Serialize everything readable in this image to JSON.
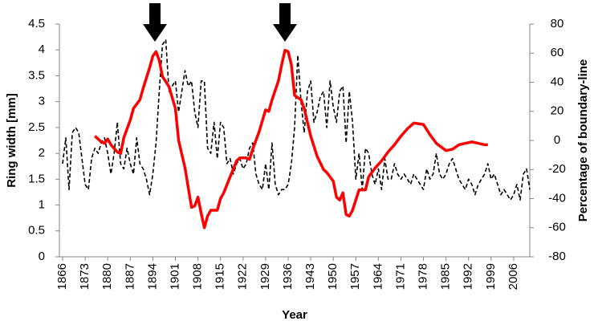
{
  "chart_data": {
    "type": "line",
    "xlabel": "Year",
    "ylabel": "Ring width [mm]",
    "y2label": "Percentage of boundary-line",
    "xlim": [
      1865,
      2011
    ],
    "xticks": [
      1866,
      1873,
      1880,
      1887,
      1894,
      1901,
      1908,
      1915,
      1922,
      1929,
      1936,
      1943,
      1950,
      1957,
      1964,
      1971,
      1978,
      1985,
      1992,
      1999,
      2006
    ],
    "ylim": [
      0,
      4.5
    ],
    "yticks": [
      {
        "value": 0,
        "label": "0"
      },
      0.5,
      1,
      1.5,
      2,
      2.5,
      3,
      3.5,
      4,
      4.5
    ],
    "y2lim": [
      -80,
      80
    ],
    "y2ticks": [
      -80,
      -60,
      -40,
      -20,
      0,
      20,
      40,
      60,
      80
    ],
    "series": [
      {
        "color": "#000000",
        "dashed": true,
        "x": [
          1866,
          1867,
          1868,
          1869,
          1870,
          1871,
          1872,
          1873,
          1874,
          1875,
          1876,
          1877,
          1878,
          1879,
          1880,
          1881,
          1882,
          1883,
          1884,
          1885,
          1886,
          1887,
          1888,
          1889,
          1890,
          1891,
          1892,
          1893,
          1894,
          1895,
          1896,
          1897,
          1898,
          1899,
          1900,
          1901,
          1902,
          1903,
          1904,
          1905,
          1906,
          1907,
          1908,
          1909,
          1910,
          1911,
          1912,
          1913,
          1914,
          1915,
          1916,
          1917,
          1918,
          1919,
          1920,
          1921,
          1922,
          1923,
          1924,
          1925,
          1926,
          1927,
          1928,
          1929,
          1930,
          1931,
          1932,
          1933,
          1934,
          1935,
          1936,
          1937,
          1938,
          1939,
          1940,
          1941,
          1942,
          1943,
          1944,
          1945,
          1946,
          1947,
          1948,
          1949,
          1950,
          1951,
          1952,
          1953,
          1954,
          1955,
          1956,
          1957,
          1958,
          1959,
          1960,
          1961,
          1962,
          1963,
          1964,
          1965,
          1966,
          1967,
          1968,
          1969,
          1970,
          1971,
          1972,
          1973,
          1974,
          1975,
          1976,
          1977,
          1978,
          1979,
          1980,
          1981,
          1982,
          1983,
          1984,
          1985,
          1986,
          1987,
          1988,
          1989,
          1990,
          1991,
          1992,
          1993,
          1994,
          1995,
          1996,
          1997,
          1998,
          1999,
          2000,
          2001,
          2002,
          2003,
          2004,
          2005,
          2006,
          2007,
          2008,
          2009,
          2010,
          2011
        ],
        "values": [
          1.8,
          2.3,
          1.3,
          2.4,
          2.5,
          2.4,
          1.9,
          1.4,
          1.3,
          1.9,
          2.1,
          2.0,
          2.2,
          2.3,
          2.0,
          1.6,
          2.0,
          2.6,
          1.8,
          1.7,
          2.1,
          1.8,
          1.6,
          2.3,
          1.8,
          1.7,
          1.5,
          1.2,
          1.6,
          2.2,
          3.2,
          4.1,
          4.2,
          3.2,
          3.3,
          3.4,
          2.8,
          3.2,
          3.6,
          3.3,
          3.4,
          2.8,
          2.5,
          3.4,
          3.4,
          2.1,
          2.0,
          2.6,
          1.9,
          2.6,
          2.5,
          1.8,
          1.9,
          1.6,
          1.8,
          1.9,
          1.7,
          1.8,
          2.1,
          2.2,
          1.6,
          1.4,
          1.3,
          1.8,
          1.3,
          2.2,
          1.4,
          1.2,
          1.3,
          1.3,
          1.4,
          1.8,
          2.5,
          3.9,
          3.0,
          2.4,
          3.2,
          3.4,
          2.6,
          2.8,
          3.1,
          3.2,
          2.5,
          3.4,
          2.9,
          2.6,
          3.2,
          3.3,
          2.2,
          3.2,
          2.6,
          1.5,
          2.0,
          1.3,
          2.1,
          2.0,
          1.6,
          1.4,
          1.7,
          1.3,
          1.9,
          1.5,
          1.5,
          1.8,
          1.6,
          1.5,
          1.6,
          1.5,
          1.4,
          1.6,
          1.5,
          1.4,
          1.3,
          1.7,
          1.5,
          1.6,
          2.0,
          1.6,
          1.5,
          1.6,
          1.8,
          1.9,
          1.7,
          1.5,
          1.4,
          1.3,
          1.5,
          1.4,
          1.2,
          1.4,
          1.5,
          1.6,
          1.8,
          1.5,
          1.6,
          1.4,
          1.2,
          1.3,
          1.2,
          1.1,
          1.2,
          1.4,
          1.1,
          1.6,
          1.7,
          1.3
        ]
      },
      {
        "color": "#ff0000",
        "axis": "y2",
        "x": [
          1876,
          1878,
          1879,
          1880,
          1881,
          1883,
          1884,
          1885,
          1887,
          1888,
          1890,
          1891,
          1893,
          1894,
          1895,
          1896,
          1897,
          1899,
          1901,
          1902,
          1904,
          1906,
          1907,
          1908,
          1909,
          1910,
          1911,
          1912,
          1914,
          1915,
          1916,
          1918,
          1920,
          1921,
          1923,
          1924,
          1925,
          1927,
          1929,
          1930,
          1931,
          1933,
          1934,
          1935,
          1936,
          1937,
          1938,
          1940,
          1941,
          1943,
          1945,
          1947,
          1948,
          1950,
          1951,
          1952,
          1953,
          1954,
          1955,
          1956,
          1958,
          1960,
          1961,
          1963,
          1965,
          1967,
          1969,
          1971,
          1973,
          1975,
          1978,
          1980,
          1982,
          1985,
          1987,
          1989,
          1991,
          1993,
          1995,
          1997,
          1998
        ],
        "values": [
          3,
          -1,
          -2,
          1,
          -3,
          -8,
          -9,
          2,
          14,
          22,
          28,
          36,
          50,
          58,
          61,
          55,
          44,
          37,
          22,
          0,
          -19,
          -46,
          -45,
          -39,
          -50,
          -60,
          -52,
          -48,
          -48,
          -40,
          -36,
          -25,
          -14,
          -12,
          -12,
          -13,
          -6,
          6,
          21,
          20,
          28,
          41,
          52,
          62,
          61,
          52,
          31,
          28,
          22,
          3,
          -11,
          -20,
          -22,
          -28,
          -39,
          -41,
          -36,
          -51,
          -52,
          -48,
          -34,
          -34,
          -25,
          -19,
          -14,
          -8,
          -3,
          3,
          8,
          12,
          11,
          4,
          -2,
          -7,
          -6,
          -3,
          -2,
          -1,
          -2,
          -3,
          -3
        ]
      }
    ]
  }
}
